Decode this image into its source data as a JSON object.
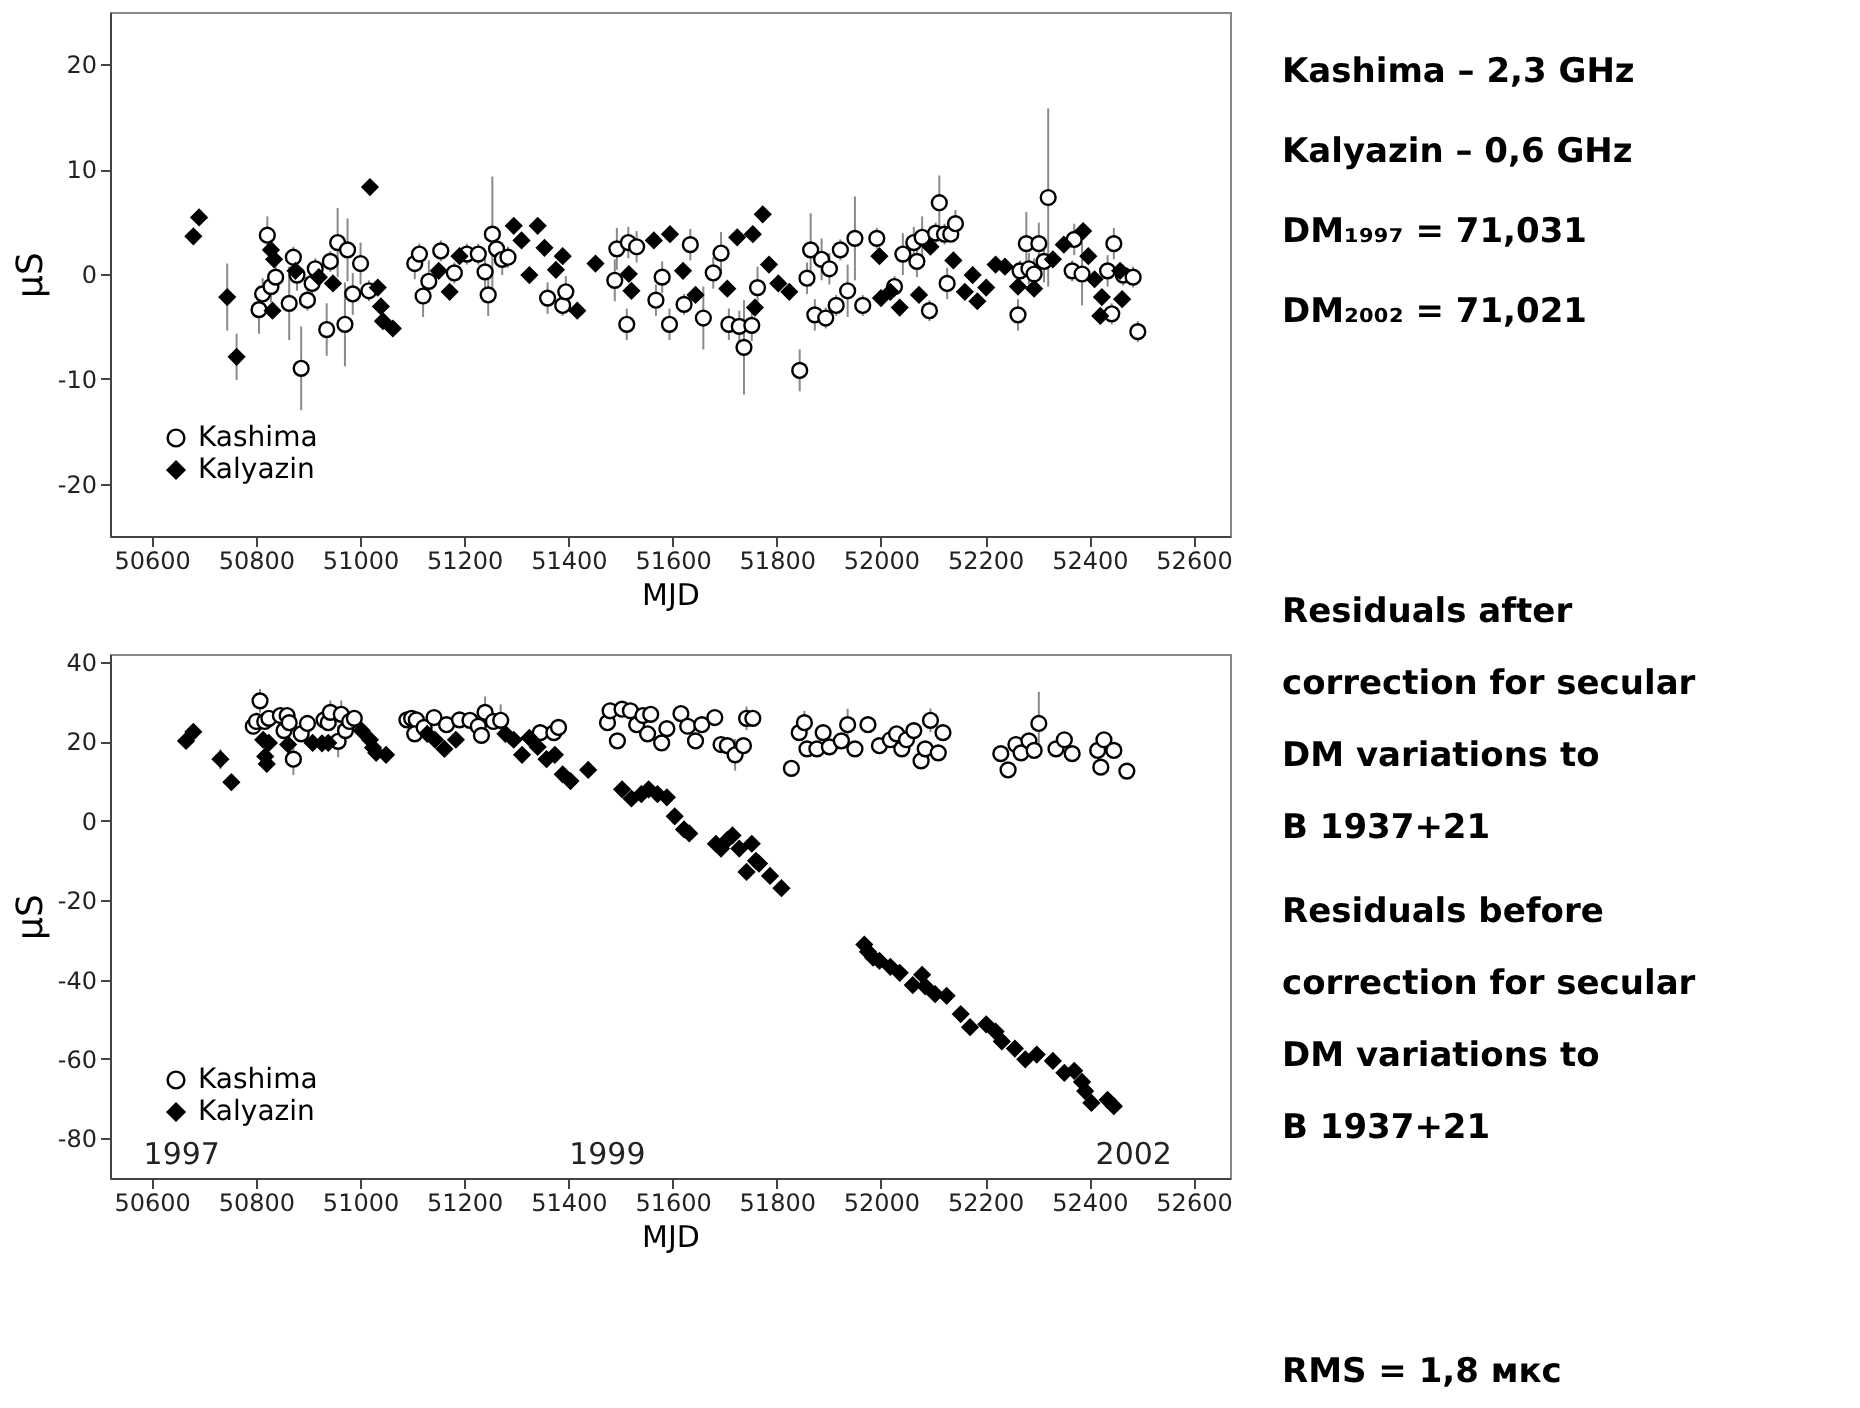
{
  "chart_data": [
    {
      "type": "scatter",
      "xlabel": "MJD",
      "ylabel": "μS",
      "xlim": [
        50520,
        52670
      ],
      "ylim": [
        -25,
        25
      ],
      "xticks": [
        50600,
        50800,
        51000,
        51200,
        51400,
        51600,
        51800,
        52000,
        52200,
        52400,
        52600
      ],
      "yticks": [
        -20,
        -10,
        0,
        10,
        20
      ],
      "grid": false,
      "legend": "bottom left",
      "series": [
        {
          "name": "Kashima",
          "color": "#000000",
          "marker": "circle",
          "x": [
            50806,
            50813,
            50822,
            50829,
            50838,
            50864,
            50872,
            50879,
            50887,
            50899,
            50908,
            50914,
            50936,
            50943,
            50957,
            50971,
            50976,
            50986,
            51001,
            51017,
            51105,
            51114,
            51121,
            51132,
            51155,
            51181,
            51205,
            51227,
            51240,
            51246,
            51254,
            51262,
            51273,
            51284,
            51360,
            51389,
            51395,
            51489,
            51493,
            51512,
            51515,
            51531,
            51568,
            51580,
            51594,
            51622,
            51634,
            51659,
            51678,
            51693,
            51708,
            51728,
            51737,
            51752,
            51763,
            51844,
            51858,
            51865,
            51873,
            51886,
            51894,
            51901,
            51914,
            51922,
            51936,
            51950,
            51965,
            51992,
            52026,
            52042,
            52063,
            52069,
            52079,
            52093,
            52105,
            52112,
            52122,
            52134,
            52143,
            52127,
            52263,
            52267,
            52279,
            52284,
            52294,
            52303,
            52313,
            52321,
            52367,
            52371,
            52386,
            52435,
            52443,
            52447,
            52465,
            52484,
            52493
          ],
          "values": [
            -3.4,
            -1.9,
            3.7,
            -1.2,
            -0.3,
            -2.8,
            1.6,
            -0.1,
            -9.0,
            -2.5,
            -0.9,
            0.5,
            -5.3,
            1.2,
            3.0,
            -4.8,
            2.3,
            -1.9,
            1.0,
            -1.6,
            1.0,
            1.9,
            -2.1,
            -0.7,
            2.2,
            0.1,
            1.9,
            1.9,
            0.2,
            -2.0,
            3.8,
            2.4,
            1.4,
            1.6,
            -2.3,
            -3.0,
            -1.7,
            -0.6,
            2.4,
            -4.8,
            3.0,
            2.6,
            -2.5,
            -0.3,
            -4.8,
            -2.9,
            2.8,
            -4.2,
            0.1,
            2.0,
            -4.8,
            -5.0,
            -7.0,
            -4.9,
            -1.3,
            -9.2,
            -0.4,
            2.3,
            -3.9,
            1.4,
            -4.2,
            0.5,
            -3.0,
            2.3,
            -1.6,
            3.4,
            -3.0,
            3.4,
            -1.2,
            1.9,
            3.0,
            1.2,
            3.5,
            -3.5,
            3.9,
            6.8,
            3.8,
            3.8,
            4.8,
            -0.9,
            -3.9,
            0.3,
            2.9,
            0.5,
            0.0,
            2.9,
            1.2,
            7.3,
            0.3,
            3.3,
            0.0,
            0.3,
            -3.8,
            2.9,
            -0.1,
            -0.3,
            -5.5
          ],
          "errors": [
            2.3,
            1.5,
            1.8,
            1.5,
            1.2,
            3.5,
            1.0,
            1.5,
            4.0,
            1.0,
            1.5,
            1.0,
            2.5,
            1.0,
            3.3,
            4.0,
            3.0,
            2.0,
            2.0,
            1.0,
            1.5,
            1.0,
            2.0,
            2.0,
            1.0,
            1.0,
            1.0,
            1.0,
            1.5,
            2.0,
            5.5,
            1.5,
            1.5,
            1.0,
            1.5,
            1.0,
            1.5,
            2.0,
            2.0,
            1.5,
            1.5,
            1.5,
            1.5,
            1.5,
            1.5,
            1.0,
            1.5,
            3.0,
            1.5,
            2.0,
            1.5,
            1.5,
            4.5,
            1.5,
            2.0,
            2.0,
            1.5,
            3.5,
            1.5,
            2.0,
            1.0,
            1.5,
            1.0,
            1.0,
            2.5,
            4.0,
            1.0,
            1.0,
            1.0,
            2.0,
            1.5,
            1.5,
            2.0,
            1.0,
            1.0,
            2.6,
            1.0,
            null,
            1.3,
            1.5,
            1.5,
            1.0,
            3.0,
            1.5,
            1.5,
            2.0,
            2.0,
            8.5,
            1.0,
            1.5,
            3.0,
            1.5,
            1.0,
            1.5,
            1.0,
            1.0,
            1.0
          ]
        },
        {
          "name": "Kalyazin",
          "color": "#000000",
          "marker": "diamond",
          "x": [
            50680,
            50691,
            50745,
            50763,
            50829,
            50832,
            50835,
            50876,
            50921,
            50948,
            51019,
            51034,
            51040,
            51044,
            51063,
            51151,
            51172,
            51191,
            51295,
            51310,
            51325,
            51341,
            51354,
            51376,
            51389,
            51417,
            51452,
            51516,
            51521,
            51564,
            51595,
            51620,
            51644,
            51705,
            51724,
            51754,
            51773,
            51758,
            51785,
            51803,
            51824,
            51997,
            52000,
            52018,
            52036,
            52073,
            52095,
            52139,
            52161,
            52176,
            52185,
            52202,
            52220,
            52238,
            52263,
            52294,
            52330,
            52351,
            52388,
            52398,
            52410,
            52424,
            52421,
            52463,
            52459
          ],
          "values": [
            3.6,
            5.4,
            -2.2,
            -7.9,
            2.3,
            -3.5,
            1.4,
            0.3,
            -0.3,
            -0.9,
            8.3,
            -1.3,
            -3.1,
            -4.5,
            -5.2,
            0.3,
            -1.7,
            1.7,
            4.6,
            3.2,
            -0.1,
            4.6,
            2.5,
            0.4,
            1.7,
            -3.5,
            1.0,
            0.0,
            -1.6,
            3.2,
            3.8,
            0.3,
            -2.0,
            -1.4,
            3.5,
            3.8,
            5.7,
            -3.2,
            0.9,
            -0.9,
            -1.7,
            1.7,
            -2.3,
            -1.7,
            -3.2,
            -2.0,
            2.6,
            1.3,
            -1.7,
            -0.1,
            -2.6,
            -1.3,
            0.9,
            0.7,
            -1.2,
            -1.4,
            1.4,
            2.8,
            4.1,
            1.7,
            -0.5,
            -2.2,
            -4.0,
            -2.4,
            0.3
          ],
          "errors": [
            0.7,
            0.7,
            3.2,
            2.2,
            0.7,
            0.7,
            0.7,
            0.7,
            0.7,
            0.7,
            0.7,
            0.7,
            0.7,
            0.7,
            0.7,
            0.7,
            0.7,
            0.7,
            0.7,
            0.7,
            0.7,
            0.7,
            0.7,
            0.7,
            0.7,
            0.7,
            0.7,
            0.7,
            0.7,
            0.7,
            0.7,
            0.7,
            0.7,
            0.7,
            0.7,
            0.7,
            0.7,
            0.7,
            0.7,
            0.7,
            0.7,
            0.7,
            0.7,
            0.7,
            0.7,
            0.7,
            0.7,
            0.7,
            0.7,
            0.7,
            0.7,
            0.7,
            0.7,
            0.7,
            0.7,
            0.7,
            0.7,
            0.7,
            0.7,
            0.7,
            0.7,
            0.7,
            0.7,
            0.7,
            0.7
          ]
        }
      ]
    },
    {
      "type": "scatter",
      "xlabel": "MJD",
      "ylabel": "μS",
      "xlim": [
        50520,
        52670
      ],
      "ylim": [
        -90,
        42
      ],
      "xticks": [
        50600,
        50800,
        51000,
        51200,
        51400,
        51600,
        51800,
        52000,
        52200,
        52400,
        52600
      ],
      "yticks": [
        -80,
        -60,
        -40,
        -20,
        0,
        20,
        40
      ],
      "grid": false,
      "legend": "bottom left",
      "annotations": [
        "1997",
        "1999",
        "2002"
      ],
      "series": [
        {
          "name": "Kashima",
          "color": "#000000",
          "marker": "circle",
          "x": [
            50795,
            50801,
            50808,
            50817,
            50825,
            50847,
            50854,
            50860,
            50864,
            50872,
            50887,
            50899,
            50931,
            50939,
            50943,
            50958,
            50964,
            50972,
            50980,
            50989,
            51090,
            51099,
            51108,
            51105,
            51123,
            51142,
            51166,
            51191,
            51211,
            51227,
            51233,
            51240,
            51256,
            51270,
            51346,
            51372,
            51381,
            51475,
            51480,
            51494,
            51503,
            51519,
            51531,
            51543,
            51552,
            51558,
            51579,
            51589,
            51616,
            51629,
            51644,
            51656,
            51681,
            51693,
            51705,
            51720,
            51736,
            51742,
            51754,
            51828,
            51843,
            51853,
            51858,
            51877,
            51889,
            51901,
            51924,
            51936,
            51950,
            51975,
            51997,
            52018,
            52030,
            52040,
            52049,
            52063,
            52077,
            52085,
            52095,
            52110,
            52119,
            52230,
            52244,
            52259,
            52269,
            52284,
            52294,
            52303,
            52336,
            52352,
            52367,
            52416,
            52422,
            52428,
            52447,
            52472
          ],
          "values": [
            23.8,
            25.0,
            30.2,
            25.0,
            25.8,
            26.5,
            22.7,
            26.5,
            24.7,
            15.5,
            21.9,
            24.5,
            25.4,
            24.7,
            27.3,
            20.0,
            26.8,
            22.7,
            25.0,
            25.8,
            25.4,
            25.8,
            25.4,
            21.9,
            23.5,
            26.0,
            24.2,
            25.4,
            25.3,
            23.8,
            21.5,
            27.3,
            25.0,
            25.3,
            22.2,
            22.2,
            23.5,
            24.7,
            27.7,
            20.1,
            28.1,
            27.7,
            24.2,
            26.5,
            21.9,
            26.8,
            19.6,
            23.2,
            27.0,
            23.8,
            20.1,
            24.2,
            26.0,
            19.2,
            18.9,
            16.6,
            18.9,
            25.8,
            25.8,
            13.2,
            22.2,
            24.7,
            18.1,
            18.1,
            22.2,
            18.6,
            20.1,
            24.2,
            18.1,
            24.2,
            18.9,
            20.4,
            21.9,
            18.1,
            20.4,
            22.7,
            15.1,
            18.1,
            25.3,
            17.1,
            22.2,
            16.9,
            12.8,
            19.2,
            17.1,
            20.1,
            17.7,
            24.5,
            18.1,
            20.4,
            16.9,
            17.7,
            13.5,
            20.4,
            17.7,
            12.5
          ],
          "errors": [
            2,
            2,
            3,
            2,
            2,
            2,
            2,
            2,
            2,
            4,
            2,
            2,
            2,
            2,
            3,
            4,
            3.5,
            2,
            2,
            2,
            2,
            2,
            2,
            2,
            2,
            2,
            2,
            2,
            2,
            2,
            2,
            4,
            2,
            4,
            2,
            2,
            2,
            2,
            2,
            2,
            2,
            2,
            2,
            2,
            2,
            2,
            2,
            2,
            2,
            2,
            2,
            2,
            2,
            2,
            2,
            4,
            2,
            3,
            2,
            2,
            2,
            3,
            2,
            2,
            2,
            2,
            2,
            4,
            2,
            2,
            2,
            2,
            2,
            2,
            2,
            2,
            2,
            2,
            3,
            2,
            2,
            2,
            2,
            2,
            2,
            2,
            2,
            8,
            2,
            2,
            2,
            2,
            2,
            2,
            2,
            2
          ]
        },
        {
          "name": "Kalyazin",
          "color": "#000000",
          "marker": "diamond",
          "x": [
            50666,
            50680,
            50732,
            50753,
            50814,
            50818,
            50821,
            50825,
            50862,
            50909,
            50927,
            50939,
            51003,
            51019,
            51025,
            51031,
            51050,
            51129,
            51144,
            51162,
            51184,
            51279,
            51295,
            51311,
            51325,
            51341,
            51358,
            51374,
            51389,
            51404,
            51438,
            51503,
            51521,
            51540,
            51554,
            51571,
            51589,
            51604,
            51622,
            51632,
            51683,
            51693,
            51705,
            51715,
            51728,
            51742,
            51752,
            51760,
            51766,
            51787,
            51809,
            51968,
            51975,
            51985,
            51997,
            52018,
            52036,
            52061,
            52079,
            52085,
            52104,
            52126,
            52153,
            52171,
            52202,
            52220,
            52232,
            52257,
            52277,
            52299,
            52330,
            52352,
            52371,
            52386,
            52392,
            52404,
            52435,
            52447
          ],
          "values": [
            20.1,
            22.4,
            15.5,
            9.7,
            20.4,
            16.2,
            14.3,
            19.6,
            19.2,
            19.6,
            19.5,
            19.6,
            22.7,
            20.4,
            18.4,
            17.1,
            16.6,
            21.9,
            20.4,
            18.1,
            20.4,
            21.9,
            20.4,
            16.6,
            20.9,
            18.6,
            15.5,
            16.6,
            11.7,
            10.0,
            12.8,
            7.9,
            5.6,
            6.7,
            7.9,
            6.7,
            5.9,
            1.1,
            -2.2,
            -3.2,
            -5.8,
            -7.0,
            -4.8,
            -3.7,
            -7.0,
            -12.9,
            -5.8,
            -10.1,
            -10.8,
            -13.9,
            -17.0,
            -31.2,
            -33.0,
            -34.5,
            -35.3,
            -36.8,
            -38.3,
            -41.4,
            -38.8,
            -41.7,
            -43.7,
            -44.1,
            -48.7,
            -52.0,
            -51.3,
            -53.1,
            -55.6,
            -57.4,
            -60.1,
            -58.9,
            -60.5,
            -63.5,
            -63.0,
            -65.8,
            -68.1,
            -71.1,
            -70.3,
            -71.9
          ],
          "errors": [
            1,
            1,
            2.5,
            2,
            1,
            1,
            1,
            1,
            1,
            1,
            1,
            1,
            1,
            1,
            1,
            1,
            1,
            1,
            1,
            1,
            1,
            1,
            1,
            1,
            1,
            1,
            1,
            1,
            1,
            1,
            1,
            1,
            1,
            1,
            1,
            1,
            1,
            1,
            1,
            1,
            1,
            1,
            1,
            1,
            1,
            2,
            1,
            1,
            1,
            1,
            1,
            1,
            1,
            1,
            1,
            1,
            1,
            1,
            1,
            1,
            1,
            1,
            1,
            1,
            1,
            1,
            1,
            1,
            1,
            1,
            1,
            1,
            1,
            1,
            1,
            2,
            2,
            2
          ]
        }
      ]
    },
    {
      "type": "other",
      "annotations": [
        "Kashima – 2,3 GHz",
        "Kalyazin – 0,6 GHz",
        "DM₁₉₉₇ = 71,031",
        "DM₂₀₀₂ = 71,021",
        "Residuals after correction for secular DM variations to B 1937+21",
        "Residuals before correction for secular DM variations to B 1937+21",
        "RMS = 1,8 мкс"
      ]
    }
  ]
}
